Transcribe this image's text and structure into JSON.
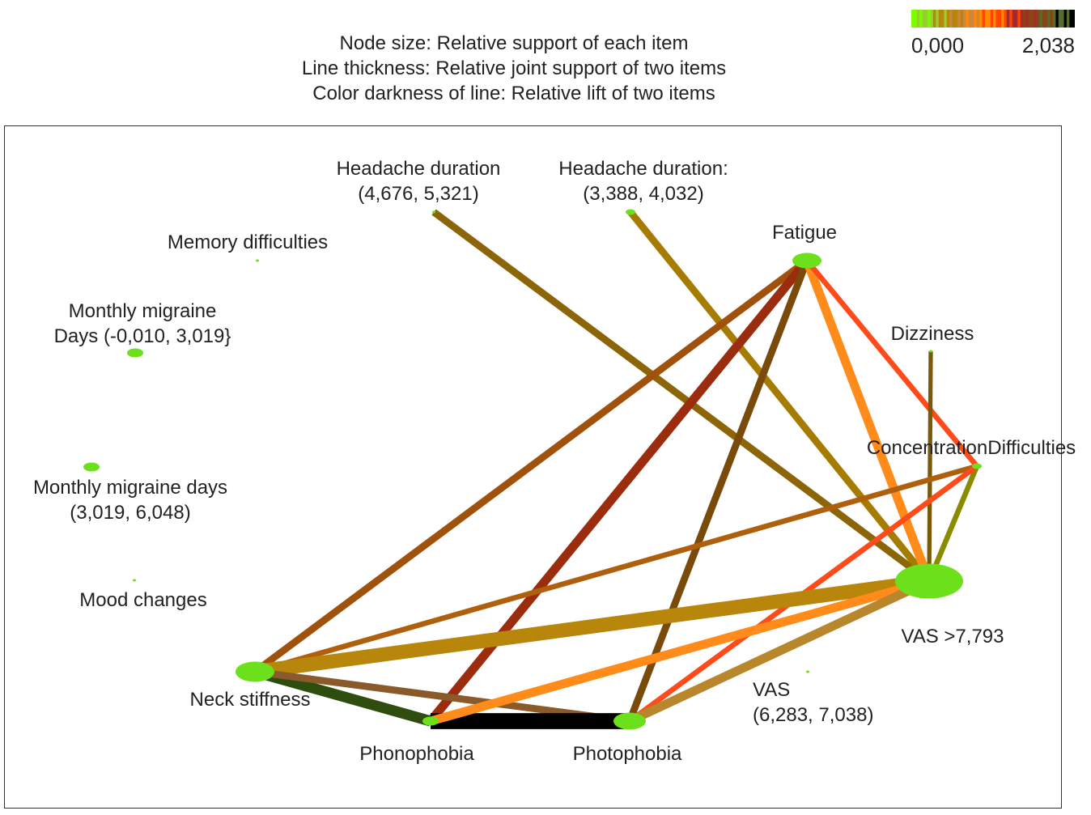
{
  "caption": {
    "line1": "Node size: Relative support of each item",
    "line2": "Line thickness: Relative joint support of two items",
    "line3": "Color darkness of line: Relative lift of two items"
  },
  "legend": {
    "min_label": "0,000",
    "max_label": "2,038",
    "colors": [
      "#7CFC00",
      "#9ACD32",
      "#B8860B",
      "#CD853F",
      "#FF8C00",
      "#FF4500",
      "#A52A2A",
      "#8B4513",
      "#556B2F",
      "#000000"
    ]
  },
  "nodes": [
    {
      "id": "headache_4676",
      "label": [
        "Headache duration",
        "(4,676, 5,321)"
      ],
      "support": 0.0
    },
    {
      "id": "headache_3388",
      "label": [
        "Headache duration:",
        "(3,388, 4,032)"
      ],
      "support": 0.1
    },
    {
      "id": "memory",
      "label": [
        "Memory difficulties"
      ],
      "support": 0.0
    },
    {
      "id": "fatigue",
      "label": [
        "Fatigue"
      ],
      "support": 0.4
    },
    {
      "id": "mmd_low",
      "label": [
        "Monthly migraine",
        "Days (-0,010, 3,019}"
      ],
      "support": 0.2
    },
    {
      "id": "dizziness",
      "label": [
        "Dizziness"
      ],
      "support": 0.0
    },
    {
      "id": "concentration",
      "label": [
        "ConcentrationDifficulties"
      ],
      "support": 0.1
    },
    {
      "id": "mmd_mid",
      "label": [
        "Monthly migraine days",
        "(3,019, 6,048)"
      ],
      "support": 0.2
    },
    {
      "id": "mood",
      "label": [
        "Mood changes"
      ],
      "support": 0.0
    },
    {
      "id": "vas_high",
      "label": [
        "VAS >7,793"
      ],
      "support": 1.0
    },
    {
      "id": "vas_mid",
      "label": [
        "VAS",
        "(6,283, 7,038)"
      ],
      "support": 0.0
    },
    {
      "id": "neck",
      "label": [
        "Neck stiffness"
      ],
      "support": 0.55
    },
    {
      "id": "phono",
      "label": [
        "Phonophobia"
      ],
      "support": 0.2
    },
    {
      "id": "photo",
      "label": [
        "Photophobia"
      ],
      "support": 0.45
    }
  ],
  "edges": [
    {
      "from": "headache_4676",
      "to": "vas_high",
      "color": "#8B6508",
      "weight": 2
    },
    {
      "from": "headache_3388",
      "to": "vas_high",
      "color": "#A67C00",
      "weight": 2
    },
    {
      "from": "fatigue",
      "to": "neck",
      "color": "#A0520D",
      "weight": 2
    },
    {
      "from": "fatigue",
      "to": "phono",
      "color": "#9B2C0E",
      "weight": 2.5
    },
    {
      "from": "fatigue",
      "to": "photo",
      "color": "#7A4A0A",
      "weight": 2
    },
    {
      "from": "fatigue",
      "to": "vas_high",
      "color": "#FF8C1A",
      "weight": 2.5
    },
    {
      "from": "fatigue",
      "to": "concentration",
      "color": "#FF4A1A",
      "weight": 1.5
    },
    {
      "from": "dizziness",
      "to": "vas_high",
      "color": "#7A5A0A",
      "weight": 1.2
    },
    {
      "from": "concentration",
      "to": "vas_high",
      "color": "#8B8B00",
      "weight": 1.5
    },
    {
      "from": "concentration",
      "to": "neck",
      "color": "#B0600D",
      "weight": 1.5
    },
    {
      "from": "concentration",
      "to": "photo",
      "color": "#FF4A1A",
      "weight": 1.5
    },
    {
      "from": "neck",
      "to": "vas_high",
      "color": "#B8860B",
      "weight": 4
    },
    {
      "from": "neck",
      "to": "phono",
      "color": "#2E4D0E",
      "weight": 3
    },
    {
      "from": "neck",
      "to": "photo",
      "color": "#8B5A2B",
      "weight": 2
    },
    {
      "from": "phono",
      "to": "photo",
      "color": "#000000",
      "weight": 4.5
    },
    {
      "from": "phono",
      "to": "vas_high",
      "color": "#FF8C1A",
      "weight": 2.5
    },
    {
      "from": "photo",
      "to": "vas_high",
      "color": "#B8862B",
      "weight": 2.5
    }
  ]
}
